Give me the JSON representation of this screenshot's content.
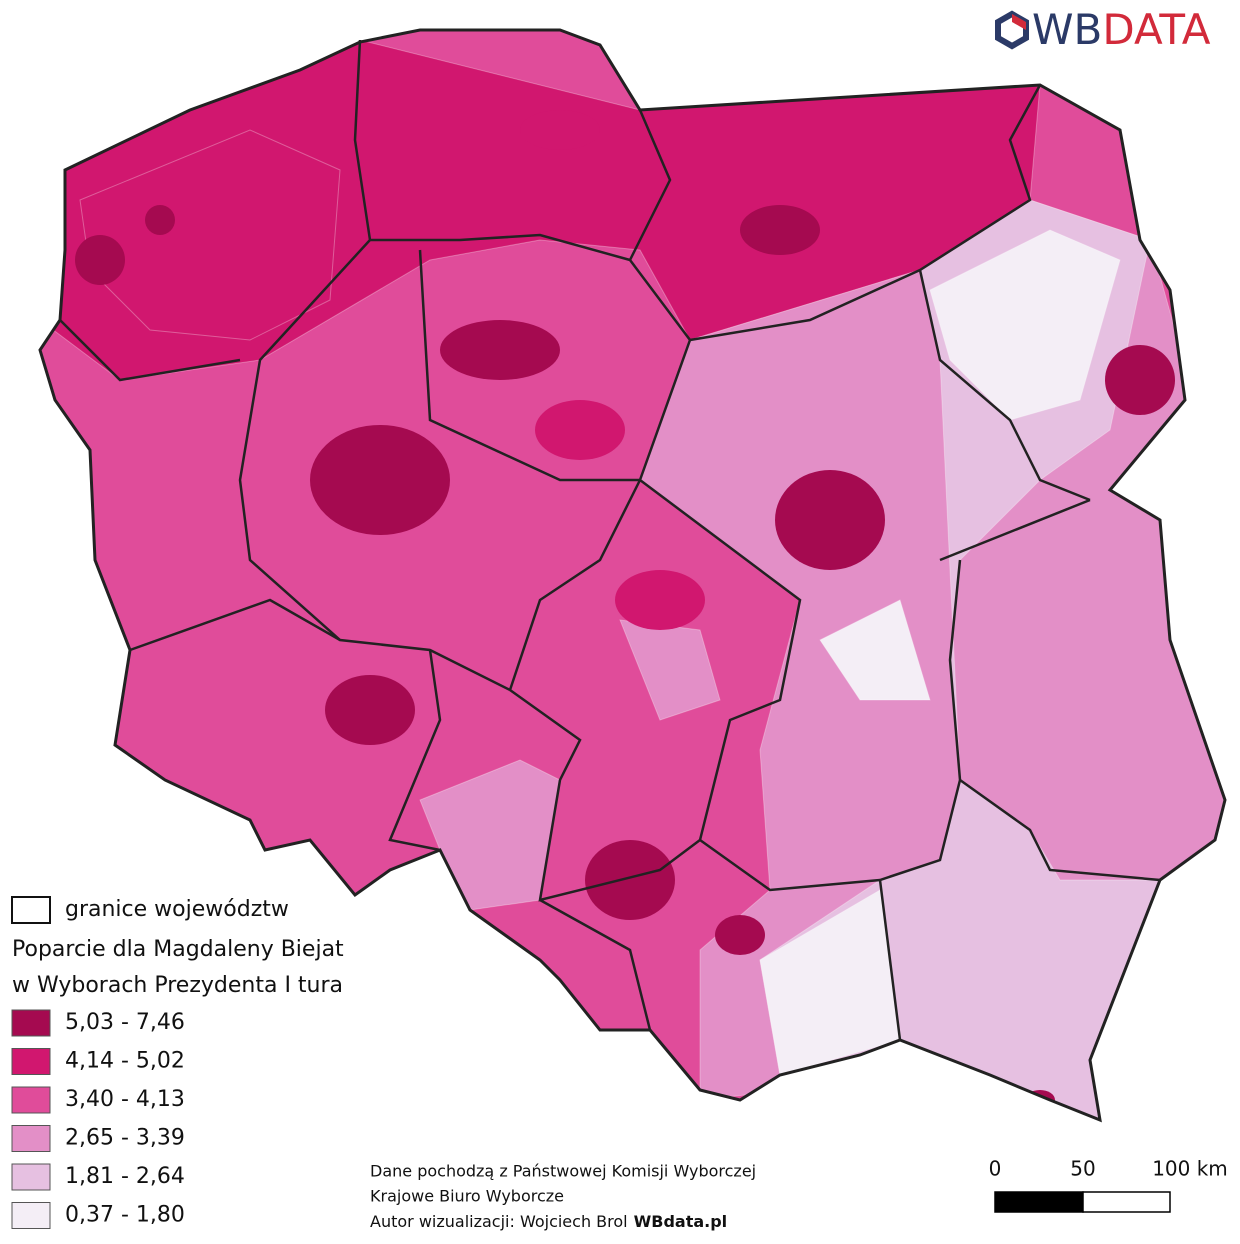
{
  "logo": {
    "part1": "WB",
    "part2": "DATA"
  },
  "legend": {
    "boundary_label": "granice województw",
    "title_lines": [
      "Poparcie dla Magdaleny Biejat",
      "w Wyborach Prezydenta I tura"
    ],
    "classes": [
      {
        "label": "5,03 - 7,46",
        "color": "#a50a50"
      },
      {
        "label": "4,14 - 5,02",
        "color": "#d1176f"
      },
      {
        "label": "3,40 - 4,13",
        "color": "#e04c9a"
      },
      {
        "label": "2,65 - 3,39",
        "color": "#e38fc7"
      },
      {
        "label": "1,81 - 2,64",
        "color": "#e6c0e1"
      },
      {
        "label": "0,37 - 1,80",
        "color": "#f4eef6"
      }
    ]
  },
  "scale_bar": {
    "labels": [
      "0",
      "50",
      "100 km"
    ]
  },
  "source": {
    "lines": [
      "Dane pochodzą z Państwowej Komisji Wyborczej",
      "Krajowe Biuro Wyborcze"
    ],
    "author": "Autor wizualizacji: Wojciech Brol",
    "site": "WBdata.pl"
  }
}
